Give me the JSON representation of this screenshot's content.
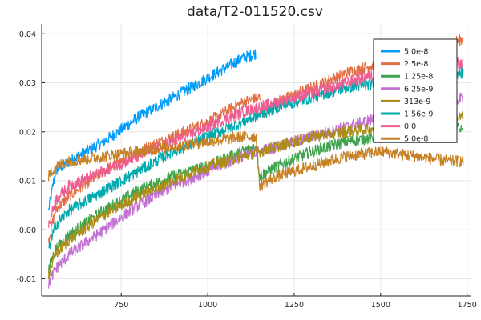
{
  "chart_data": {
    "type": "line",
    "title": "data/T2-011520.csv",
    "xlabel": "",
    "ylabel": "",
    "xlim": [
      520,
      1760
    ],
    "ylim": [
      -0.0135,
      0.042
    ],
    "xticks": [
      750,
      1000,
      1250,
      1500,
      1750
    ],
    "xtick_labels": [
      "750",
      "1000",
      "1250",
      "1500",
      "1750"
    ],
    "yticks": [
      -0.01,
      0.0,
      0.01,
      0.02,
      0.03,
      0.04
    ],
    "ytick_labels": [
      "-0.01",
      "0.00",
      "0.01",
      "0.02",
      "0.03",
      "0.04"
    ],
    "grid": true,
    "legend_position": "top-right",
    "series": [
      {
        "name": "5.0e-8",
        "color": "#009af9",
        "x": [
          540,
          560,
          600,
          700,
          800,
          900,
          1000,
          1100,
          1140
        ],
        "y": [
          0.004,
          0.012,
          0.014,
          0.018,
          0.023,
          0.027,
          0.031,
          0.035,
          0.036
        ],
        "noise": 0.0012
      },
      {
        "name": "2.5e-8",
        "color": "#e26f46",
        "x": [
          540,
          560,
          600,
          700,
          800,
          900,
          1000,
          1100,
          1150,
          1160,
          1200,
          1300,
          1400,
          1500,
          1600,
          1700,
          1740
        ],
        "y": [
          -0.002,
          0.004,
          0.007,
          0.012,
          0.016,
          0.019,
          0.022,
          0.026,
          0.027,
          0.024,
          0.026,
          0.029,
          0.032,
          0.034,
          0.036,
          0.038,
          0.039
        ],
        "noise": 0.0012
      },
      {
        "name": "1.25e-8",
        "color": "#3da44d",
        "x": [
          540,
          560,
          600,
          700,
          800,
          900,
          1000,
          1100,
          1140,
          1150,
          1200,
          1300,
          1400,
          1500,
          1600,
          1700,
          1740
        ],
        "y": [
          -0.008,
          -0.004,
          -0.001,
          0.004,
          0.008,
          0.011,
          0.013,
          0.016,
          0.017,
          0.011,
          0.013,
          0.016,
          0.018,
          0.019,
          0.02,
          0.021,
          0.021
        ],
        "noise": 0.0012
      },
      {
        "name": "6.25e-9",
        "color": "#c271d2",
        "x": [
          540,
          560,
          600,
          700,
          800,
          900,
          1000,
          1100,
          1200,
          1300,
          1400,
          1500,
          1600,
          1700,
          1740
        ],
        "y": [
          -0.011,
          -0.008,
          -0.005,
          0.0,
          0.005,
          0.009,
          0.012,
          0.015,
          0.017,
          0.019,
          0.021,
          0.023,
          0.025,
          0.026,
          0.027
        ],
        "noise": 0.0012
      },
      {
        "name": "313e-9",
        "color": "#ac8d18",
        "x": [
          540,
          560,
          600,
          700,
          800,
          900,
          1000,
          1100,
          1200,
          1300,
          1400,
          1500,
          1600,
          1700,
          1740
        ],
        "y": [
          -0.009,
          -0.005,
          -0.002,
          0.003,
          0.007,
          0.01,
          0.013,
          0.015,
          0.017,
          0.019,
          0.02,
          0.021,
          0.022,
          0.023,
          0.023
        ],
        "noise": 0.0012
      },
      {
        "name": "1.56e-9",
        "color": "#00a9ad",
        "x": [
          540,
          560,
          600,
          700,
          800,
          900,
          1000,
          1100,
          1200,
          1300,
          1400,
          1500,
          1600,
          1700,
          1740
        ],
        "y": [
          -0.004,
          0.001,
          0.004,
          0.008,
          0.012,
          0.016,
          0.019,
          0.022,
          0.025,
          0.027,
          0.029,
          0.03,
          0.031,
          0.032,
          0.032
        ],
        "noise": 0.0012
      },
      {
        "name": "0.0",
        "color": "#ed5d92",
        "x": [
          540,
          560,
          600,
          700,
          800,
          900,
          1000,
          1100,
          1200,
          1300,
          1400,
          1500,
          1600,
          1700,
          1740
        ],
        "y": [
          0.001,
          0.006,
          0.009,
          0.012,
          0.015,
          0.018,
          0.021,
          0.024,
          0.026,
          0.028,
          0.03,
          0.032,
          0.033,
          0.034,
          0.034
        ],
        "noise": 0.0012
      },
      {
        "name": "5.0e-8",
        "color": "#c68125",
        "x": [
          540,
          560,
          600,
          700,
          800,
          900,
          1000,
          1100,
          1140,
          1150,
          1200,
          1300,
          1400,
          1500,
          1600,
          1700,
          1740
        ],
        "y": [
          0.011,
          0.013,
          0.014,
          0.015,
          0.016,
          0.017,
          0.018,
          0.019,
          0.019,
          0.009,
          0.011,
          0.013,
          0.015,
          0.016,
          0.015,
          0.014,
          0.014
        ],
        "noise": 0.0012
      }
    ]
  }
}
